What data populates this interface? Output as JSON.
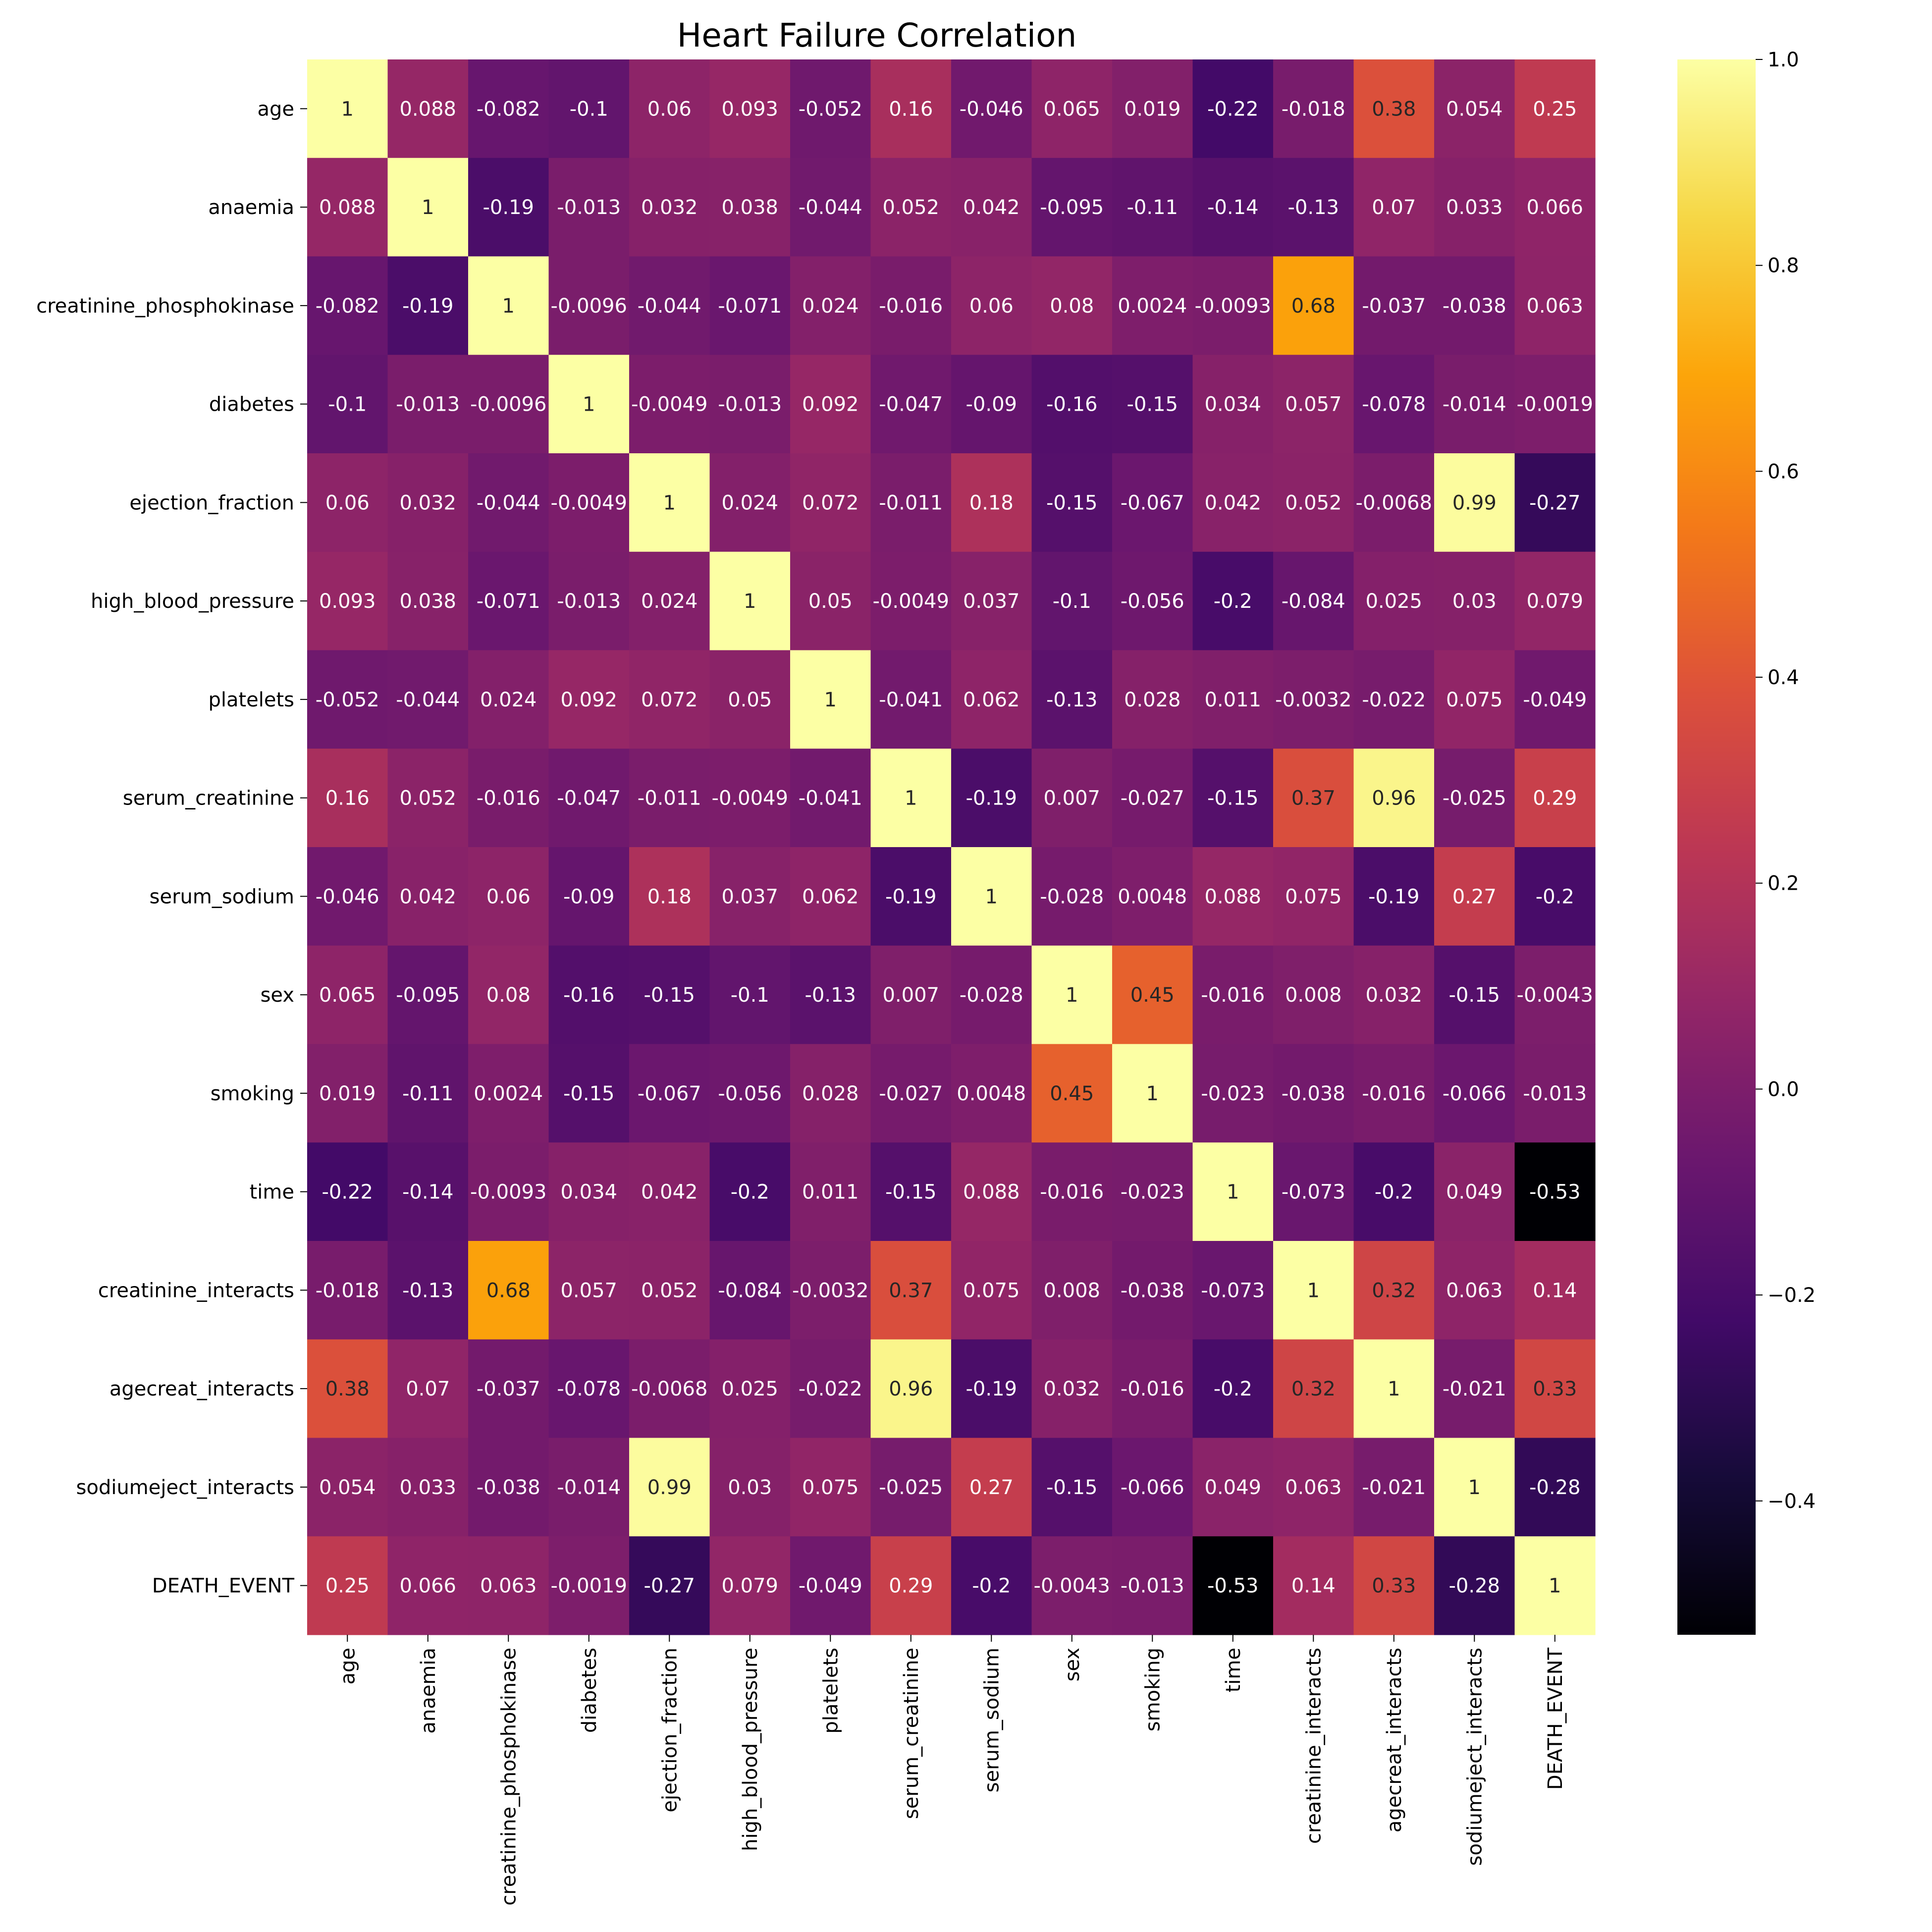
{
  "chart_data": {
    "type": "heatmap",
    "title": "Heart Failure Correlation",
    "xlabel": "",
    "ylabel": "",
    "colormap": "inferno",
    "vmin": -0.53,
    "vmax": 1.0,
    "labels": [
      "age",
      "anaemia",
      "creatinine_phosphokinase",
      "diabetes",
      "ejection_fraction",
      "high_blood_pressure",
      "platelets",
      "serum_creatinine",
      "serum_sodium",
      "sex",
      "smoking",
      "time",
      "creatinine_interacts",
      "agecreat_interacts",
      "sodiumeject_interacts",
      "DEATH_EVENT"
    ],
    "matrix": [
      [
        1,
        0.088,
        -0.082,
        -0.1,
        0.06,
        0.093,
        -0.052,
        0.16,
        -0.046,
        0.065,
        0.019,
        -0.22,
        -0.018,
        0.38,
        0.054,
        0.25
      ],
      [
        0.088,
        1,
        -0.19,
        -0.013,
        0.032,
        0.038,
        -0.044,
        0.052,
        0.042,
        -0.095,
        -0.11,
        -0.14,
        -0.13,
        0.07,
        0.033,
        0.066
      ],
      [
        -0.082,
        -0.19,
        1,
        -0.0096,
        -0.044,
        -0.071,
        0.024,
        -0.016,
        0.06,
        0.08,
        0.0024,
        -0.0093,
        0.68,
        -0.037,
        -0.038,
        0.063
      ],
      [
        -0.1,
        -0.013,
        -0.0096,
        1,
        -0.0049,
        -0.013,
        0.092,
        -0.047,
        -0.09,
        -0.16,
        -0.15,
        0.034,
        0.057,
        -0.078,
        -0.014,
        -0.0019
      ],
      [
        0.06,
        0.032,
        -0.044,
        -0.0049,
        1,
        0.024,
        0.072,
        -0.011,
        0.18,
        -0.15,
        -0.067,
        0.042,
        0.052,
        -0.0068,
        0.99,
        -0.27
      ],
      [
        0.093,
        0.038,
        -0.071,
        -0.013,
        0.024,
        1,
        0.05,
        -0.0049,
        0.037,
        -0.1,
        -0.056,
        -0.2,
        -0.084,
        0.025,
        0.03,
        0.079
      ],
      [
        -0.052,
        -0.044,
        0.024,
        0.092,
        0.072,
        0.05,
        1,
        -0.041,
        0.062,
        -0.13,
        0.028,
        0.011,
        -0.0032,
        -0.022,
        0.075,
        -0.049
      ],
      [
        0.16,
        0.052,
        -0.016,
        -0.047,
        -0.011,
        -0.0049,
        -0.041,
        1,
        -0.19,
        0.007,
        -0.027,
        -0.15,
        0.37,
        0.96,
        -0.025,
        0.29
      ],
      [
        -0.046,
        0.042,
        0.06,
        -0.09,
        0.18,
        0.037,
        0.062,
        -0.19,
        1,
        -0.028,
        0.0048,
        0.088,
        0.075,
        -0.19,
        0.27,
        -0.2
      ],
      [
        0.065,
        -0.095,
        0.08,
        -0.16,
        -0.15,
        -0.1,
        -0.13,
        0.007,
        -0.028,
        1,
        0.45,
        -0.016,
        0.008,
        0.032,
        -0.15,
        -0.0043
      ],
      [
        0.019,
        -0.11,
        0.0024,
        -0.15,
        -0.067,
        -0.056,
        0.028,
        -0.027,
        0.0048,
        0.45,
        1,
        -0.023,
        -0.038,
        -0.016,
        -0.066,
        -0.013
      ],
      [
        -0.22,
        -0.14,
        -0.0093,
        0.034,
        0.042,
        -0.2,
        0.011,
        -0.15,
        0.088,
        -0.016,
        -0.023,
        1,
        -0.073,
        -0.2,
        0.049,
        -0.53
      ],
      [
        -0.018,
        -0.13,
        0.68,
        0.057,
        0.052,
        -0.084,
        -0.0032,
        0.37,
        0.075,
        0.008,
        -0.038,
        -0.073,
        1,
        0.32,
        0.063,
        0.14
      ],
      [
        0.38,
        0.07,
        -0.037,
        -0.078,
        -0.0068,
        0.025,
        -0.022,
        0.96,
        -0.19,
        0.032,
        -0.016,
        -0.2,
        0.32,
        1,
        -0.021,
        0.33
      ],
      [
        0.054,
        0.033,
        -0.038,
        -0.014,
        0.99,
        0.03,
        0.075,
        -0.025,
        0.27,
        -0.15,
        -0.066,
        0.049,
        0.063,
        -0.021,
        1,
        -0.28
      ],
      [
        0.25,
        0.066,
        0.063,
        -0.0019,
        -0.27,
        0.079,
        -0.049,
        0.29,
        -0.2,
        -0.0043,
        -0.013,
        -0.53,
        0.14,
        0.33,
        -0.28,
        1
      ]
    ],
    "colorbar": {
      "ticks": [
        1.0,
        0.8,
        0.6,
        0.4,
        0.2,
        0.0,
        -0.2,
        -0.4
      ],
      "tick_labels": [
        "1.0",
        "0.8",
        "0.6",
        "0.4",
        "0.2",
        "0.0",
        "−0.2",
        "−0.4"
      ]
    },
    "annotations": "cell values shown in each cell",
    "grid": false,
    "legend": "colorbar-right"
  }
}
